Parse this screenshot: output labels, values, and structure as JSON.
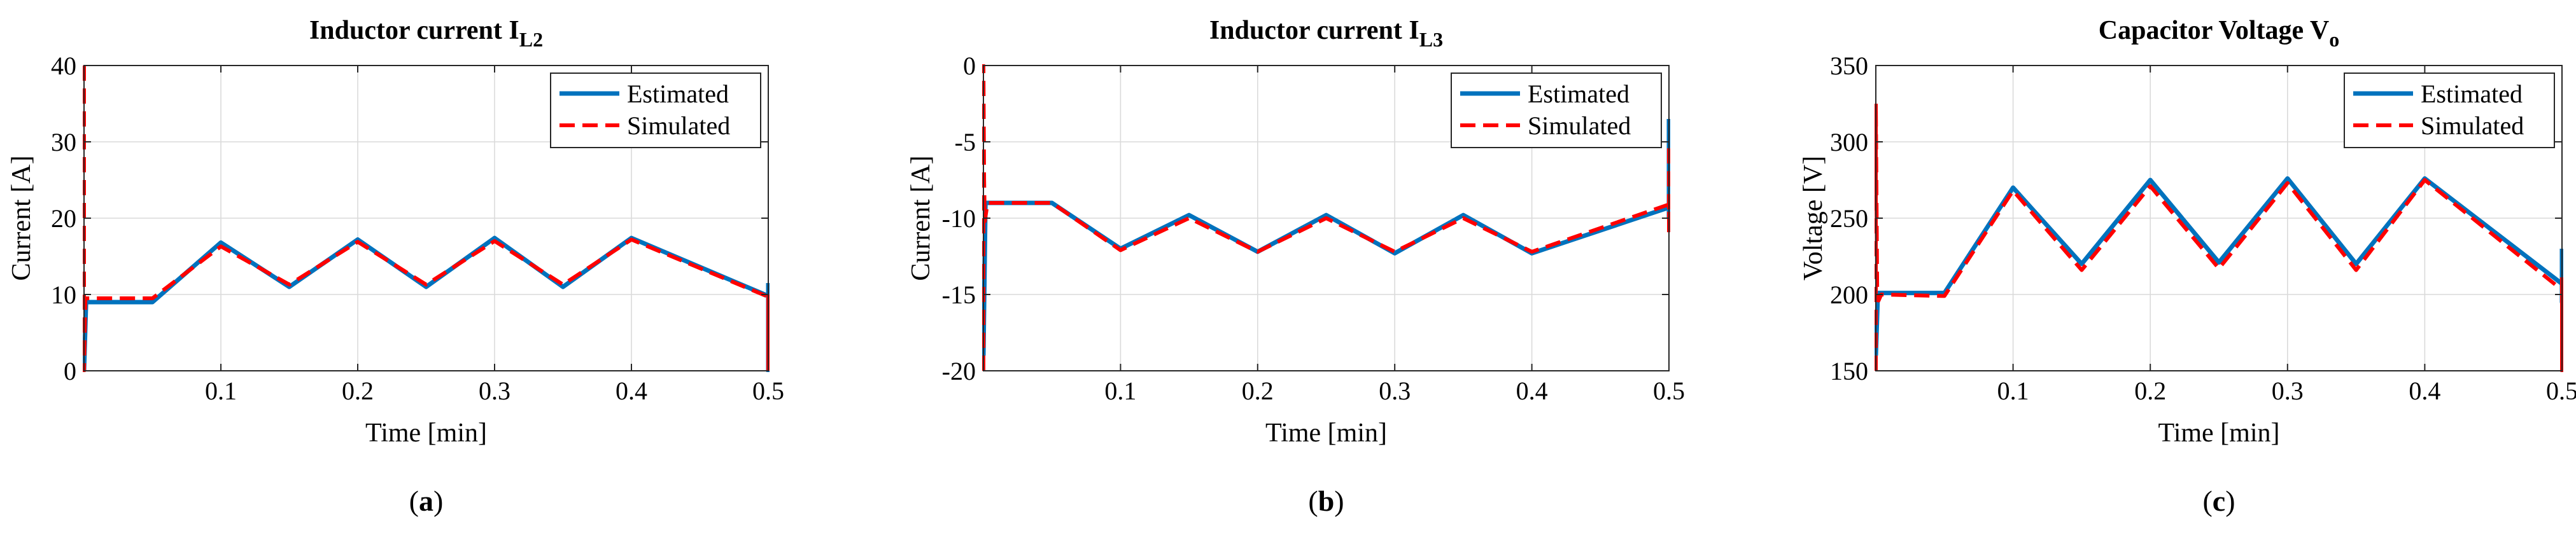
{
  "colors": {
    "estimated": "#0072BD",
    "simulated": "#FF0000",
    "grid": "#DADADA",
    "axis": "#262626"
  },
  "chart_data": [
    {
      "type": "line",
      "panel_label": "(a)",
      "panel_letter": "a",
      "title_main": "Inductor current I",
      "title_sub": "L2",
      "xlabel": "Time [min]",
      "ylabel": "Current [A]",
      "xlim": [
        0,
        0.5
      ],
      "ylim": [
        0,
        40
      ],
      "xticks": [
        0.1,
        0.2,
        0.3,
        0.4,
        0.5
      ],
      "xtick_labels": [
        "0.1",
        "0.2",
        "0.3",
        "0.4",
        "0.5"
      ],
      "yticks": [
        0,
        10,
        20,
        30,
        40
      ],
      "ytick_labels": [
        "0",
        "10",
        "20",
        "30",
        "40"
      ],
      "legend": [
        "Estimated",
        "Simulated"
      ],
      "legend_position": "top-right",
      "series": [
        {
          "name": "Estimated",
          "style": "solid",
          "points": [
            [
              0,
              0
            ],
            [
              0.0015,
              9
            ],
            [
              0.05,
              9
            ],
            [
              0.1,
              16.8
            ],
            [
              0.15,
              11
            ],
            [
              0.2,
              17.2
            ],
            [
              0.25,
              11
            ],
            [
              0.3,
              17.4
            ],
            [
              0.35,
              11
            ],
            [
              0.4,
              17.4
            ],
            [
              0.5,
              9.8
            ],
            [
              0.5,
              0
            ],
            [
              0.5,
              11.5
            ]
          ]
        },
        {
          "name": "Simulated",
          "style": "dashed",
          "points": [
            [
              0,
              40
            ],
            [
              0,
              0
            ],
            [
              0.001,
              9.5
            ],
            [
              0.05,
              9.5
            ],
            [
              0.1,
              16.3
            ],
            [
              0.15,
              11.3
            ],
            [
              0.2,
              16.9
            ],
            [
              0.25,
              11.3
            ],
            [
              0.3,
              17
            ],
            [
              0.35,
              11.3
            ],
            [
              0.4,
              17.2
            ],
            [
              0.5,
              9.7
            ],
            [
              0.5,
              0
            ],
            [
              0.5,
              10
            ]
          ]
        }
      ]
    },
    {
      "type": "line",
      "panel_label": "(b)",
      "panel_letter": "b",
      "title_main": "Inductor current I",
      "title_sub": "L3",
      "xlabel": "Time [min]",
      "ylabel": "Current [A]",
      "xlim": [
        0,
        0.5
      ],
      "ylim": [
        -20,
        0
      ],
      "xticks": [
        0.1,
        0.2,
        0.3,
        0.4,
        0.5
      ],
      "xtick_labels": [
        "0.1",
        "0.2",
        "0.3",
        "0.4",
        "0.5"
      ],
      "yticks": [
        -20,
        -15,
        -10,
        -5,
        0
      ],
      "ytick_labels": [
        "-20",
        "-15",
        "-10",
        "-5",
        "0"
      ],
      "legend": [
        "Estimated",
        "Simulated"
      ],
      "legend_position": "top-right",
      "series": [
        {
          "name": "Estimated",
          "style": "solid",
          "points": [
            [
              0,
              -19
            ],
            [
              0.0015,
              -9
            ],
            [
              0.05,
              -9
            ],
            [
              0.1,
              -12
            ],
            [
              0.15,
              -9.8
            ],
            [
              0.2,
              -12.2
            ],
            [
              0.25,
              -9.8
            ],
            [
              0.3,
              -12.3
            ],
            [
              0.35,
              -9.8
            ],
            [
              0.4,
              -12.3
            ],
            [
              0.5,
              -9.3
            ],
            [
              0.5,
              -10
            ],
            [
              0.5,
              -3.5
            ]
          ]
        },
        {
          "name": "Simulated",
          "style": "dashed",
          "points": [
            [
              0,
              -20
            ],
            [
              0,
              0
            ],
            [
              0.0005,
              -7.5
            ],
            [
              0.001,
              -10.2
            ],
            [
              0.003,
              -9
            ],
            [
              0.05,
              -9
            ],
            [
              0.1,
              -12.1
            ],
            [
              0.15,
              -10
            ],
            [
              0.2,
              -12.2
            ],
            [
              0.25,
              -10
            ],
            [
              0.3,
              -12.2
            ],
            [
              0.35,
              -10
            ],
            [
              0.4,
              -12.2
            ],
            [
              0.5,
              -9.1
            ],
            [
              0.5,
              -11
            ],
            [
              0.5,
              -5
            ]
          ]
        }
      ]
    },
    {
      "type": "line",
      "panel_label": "(c)",
      "panel_letter": "c",
      "title_main": "Capacitor Voltage V",
      "title_sub": "o",
      "xlabel": "Time [min]",
      "ylabel": "Voltage [V]",
      "xlim": [
        0,
        0.5
      ],
      "ylim": [
        150,
        350
      ],
      "xticks": [
        0.1,
        0.2,
        0.3,
        0.4,
        0.5
      ],
      "xtick_labels": [
        "0.1",
        "0.2",
        "0.3",
        "0.4",
        "0.5"
      ],
      "yticks": [
        150,
        200,
        250,
        300,
        350
      ],
      "ytick_labels": [
        "150",
        "200",
        "250",
        "300",
        "350"
      ],
      "legend": [
        "Estimated",
        "Simulated"
      ],
      "legend_position": "top-right",
      "series": [
        {
          "name": "Estimated",
          "style": "solid",
          "points": [
            [
              0,
              160
            ],
            [
              0.0015,
              201
            ],
            [
              0.05,
              201
            ],
            [
              0.1,
              270
            ],
            [
              0.15,
              220
            ],
            [
              0.2,
              275
            ],
            [
              0.25,
              221
            ],
            [
              0.3,
              276
            ],
            [
              0.35,
              220
            ],
            [
              0.4,
              276
            ],
            [
              0.5,
              207
            ],
            [
              0.5,
              195
            ],
            [
              0.5,
              230
            ]
          ]
        },
        {
          "name": "Simulated",
          "style": "dashed",
          "points": [
            [
              0,
              150
            ],
            [
              0,
              325
            ],
            [
              0.001,
              200
            ],
            [
              0.002,
              196
            ],
            [
              0.004,
              200
            ],
            [
              0.05,
              199
            ],
            [
              0.1,
              268
            ],
            [
              0.15,
              216
            ],
            [
              0.2,
              271
            ],
            [
              0.25,
              217
            ],
            [
              0.3,
              273
            ],
            [
              0.35,
              216
            ],
            [
              0.4,
              275
            ],
            [
              0.5,
              203
            ],
            [
              0.5,
              150
            ],
            [
              0.5,
              215
            ]
          ]
        }
      ]
    }
  ]
}
